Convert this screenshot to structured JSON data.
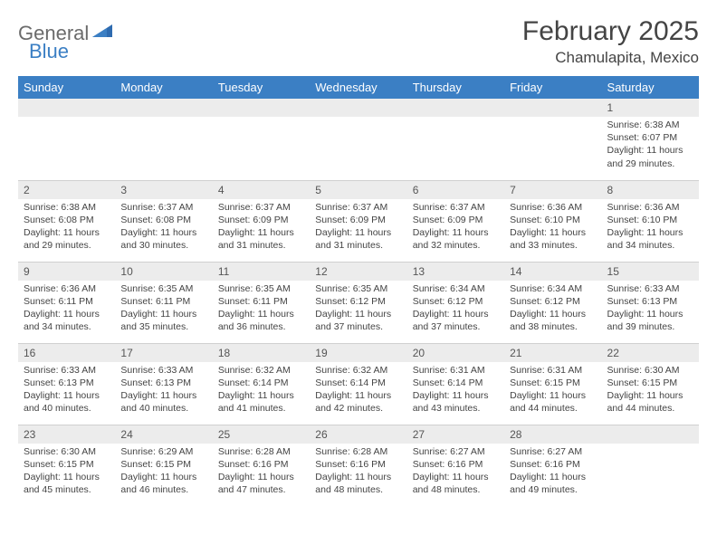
{
  "logo": {
    "word1": "General",
    "word2": "Blue"
  },
  "title": "February 2025",
  "location": "Chamulapita, Mexico",
  "colors": {
    "header_bg": "#3b7fc4",
    "header_text": "#ffffff",
    "daynum_bg": "#ececec",
    "text": "#444444",
    "logo_gray": "#6b6b6b",
    "logo_blue": "#3b7fc4"
  },
  "weekdays": [
    "Sunday",
    "Monday",
    "Tuesday",
    "Wednesday",
    "Thursday",
    "Friday",
    "Saturday"
  ],
  "weeks": [
    [
      null,
      null,
      null,
      null,
      null,
      null,
      {
        "n": "1",
        "sunrise": "6:38 AM",
        "sunset": "6:07 PM",
        "daylight": "11 hours and 29 minutes."
      }
    ],
    [
      {
        "n": "2",
        "sunrise": "6:38 AM",
        "sunset": "6:08 PM",
        "daylight": "11 hours and 29 minutes."
      },
      {
        "n": "3",
        "sunrise": "6:37 AM",
        "sunset": "6:08 PM",
        "daylight": "11 hours and 30 minutes."
      },
      {
        "n": "4",
        "sunrise": "6:37 AM",
        "sunset": "6:09 PM",
        "daylight": "11 hours and 31 minutes."
      },
      {
        "n": "5",
        "sunrise": "6:37 AM",
        "sunset": "6:09 PM",
        "daylight": "11 hours and 31 minutes."
      },
      {
        "n": "6",
        "sunrise": "6:37 AM",
        "sunset": "6:09 PM",
        "daylight": "11 hours and 32 minutes."
      },
      {
        "n": "7",
        "sunrise": "6:36 AM",
        "sunset": "6:10 PM",
        "daylight": "11 hours and 33 minutes."
      },
      {
        "n": "8",
        "sunrise": "6:36 AM",
        "sunset": "6:10 PM",
        "daylight": "11 hours and 34 minutes."
      }
    ],
    [
      {
        "n": "9",
        "sunrise": "6:36 AM",
        "sunset": "6:11 PM",
        "daylight": "11 hours and 34 minutes."
      },
      {
        "n": "10",
        "sunrise": "6:35 AM",
        "sunset": "6:11 PM",
        "daylight": "11 hours and 35 minutes."
      },
      {
        "n": "11",
        "sunrise": "6:35 AM",
        "sunset": "6:11 PM",
        "daylight": "11 hours and 36 minutes."
      },
      {
        "n": "12",
        "sunrise": "6:35 AM",
        "sunset": "6:12 PM",
        "daylight": "11 hours and 37 minutes."
      },
      {
        "n": "13",
        "sunrise": "6:34 AM",
        "sunset": "6:12 PM",
        "daylight": "11 hours and 37 minutes."
      },
      {
        "n": "14",
        "sunrise": "6:34 AM",
        "sunset": "6:12 PM",
        "daylight": "11 hours and 38 minutes."
      },
      {
        "n": "15",
        "sunrise": "6:33 AM",
        "sunset": "6:13 PM",
        "daylight": "11 hours and 39 minutes."
      }
    ],
    [
      {
        "n": "16",
        "sunrise": "6:33 AM",
        "sunset": "6:13 PM",
        "daylight": "11 hours and 40 minutes."
      },
      {
        "n": "17",
        "sunrise": "6:33 AM",
        "sunset": "6:13 PM",
        "daylight": "11 hours and 40 minutes."
      },
      {
        "n": "18",
        "sunrise": "6:32 AM",
        "sunset": "6:14 PM",
        "daylight": "11 hours and 41 minutes."
      },
      {
        "n": "19",
        "sunrise": "6:32 AM",
        "sunset": "6:14 PM",
        "daylight": "11 hours and 42 minutes."
      },
      {
        "n": "20",
        "sunrise": "6:31 AM",
        "sunset": "6:14 PM",
        "daylight": "11 hours and 43 minutes."
      },
      {
        "n": "21",
        "sunrise": "6:31 AM",
        "sunset": "6:15 PM",
        "daylight": "11 hours and 44 minutes."
      },
      {
        "n": "22",
        "sunrise": "6:30 AM",
        "sunset": "6:15 PM",
        "daylight": "11 hours and 44 minutes."
      }
    ],
    [
      {
        "n": "23",
        "sunrise": "6:30 AM",
        "sunset": "6:15 PM",
        "daylight": "11 hours and 45 minutes."
      },
      {
        "n": "24",
        "sunrise": "6:29 AM",
        "sunset": "6:15 PM",
        "daylight": "11 hours and 46 minutes."
      },
      {
        "n": "25",
        "sunrise": "6:28 AM",
        "sunset": "6:16 PM",
        "daylight": "11 hours and 47 minutes."
      },
      {
        "n": "26",
        "sunrise": "6:28 AM",
        "sunset": "6:16 PM",
        "daylight": "11 hours and 48 minutes."
      },
      {
        "n": "27",
        "sunrise": "6:27 AM",
        "sunset": "6:16 PM",
        "daylight": "11 hours and 48 minutes."
      },
      {
        "n": "28",
        "sunrise": "6:27 AM",
        "sunset": "6:16 PM",
        "daylight": "11 hours and 49 minutes."
      },
      null
    ]
  ],
  "labels": {
    "sunrise": "Sunrise:",
    "sunset": "Sunset:",
    "daylight": "Daylight:"
  }
}
